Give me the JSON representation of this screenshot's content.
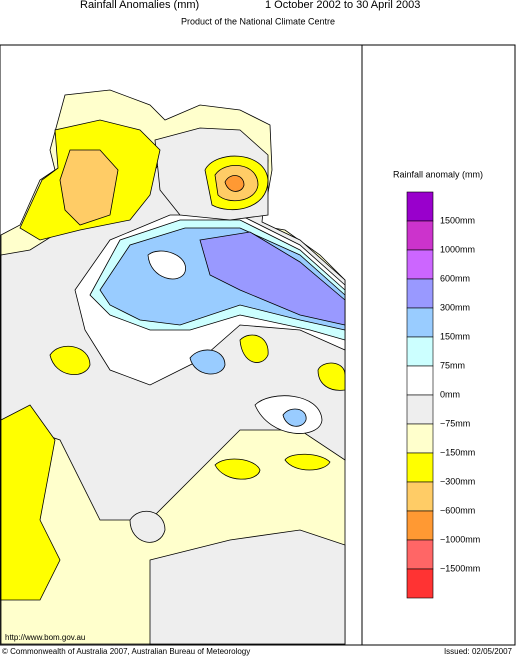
{
  "header": {
    "title": "Rainfall Anomalies (mm)",
    "period": "1 October 2002 to 30 April 2003",
    "subtitle": "Product of the National Climate Centre"
  },
  "legend": {
    "title": "Rainfall anomaly (mm)",
    "colors": [
      "#9900cc",
      "#cc33cc",
      "#cc66ff",
      "#9999ff",
      "#99ccff",
      "#ccffff",
      "#ffffff",
      "#eeeeee",
      "#ffffcc",
      "#ffff00",
      "#ffcc66",
      "#ff9933",
      "#ff6666",
      "#ff3333"
    ],
    "labels": [
      "1500mm",
      "1000mm",
      "600mm",
      "300mm",
      "150mm",
      "75mm",
      "0mm",
      "−75mm",
      "−150mm",
      "−300mm",
      "−600mm",
      "−1000mm",
      "−1500mm"
    ]
  },
  "footer": {
    "url": "http://www.bom.gov.au",
    "copyright": "© Commonwealth of Australia 2007, Australian Bureau of Meteorology",
    "issued": "Issued: 02/05/2007"
  }
}
